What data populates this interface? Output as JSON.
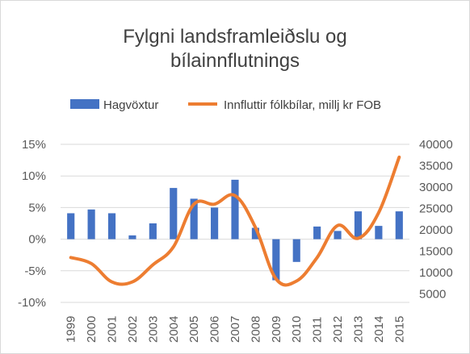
{
  "chart_data": {
    "type": "bar+line",
    "title_lines": [
      "Fylgni landsframleiðslu og",
      "bílainnflutnings"
    ],
    "categories": [
      "1999",
      "2000",
      "2001",
      "2002",
      "2003",
      "2004",
      "2005",
      "2006",
      "2007",
      "2008",
      "2009",
      "2010",
      "2011",
      "2012",
      "2013",
      "2014",
      "2015"
    ],
    "series": [
      {
        "name": "Hagvöxtur",
        "type": "bar",
        "axis": "left",
        "color": "#4472c4",
        "values": [
          4.1,
          4.7,
          4.1,
          0.6,
          2.5,
          8.1,
          6.4,
          5.0,
          9.4,
          1.8,
          -6.5,
          -3.6,
          2.0,
          1.3,
          4.4,
          2.1,
          4.4
        ]
      },
      {
        "name": "Innfluttir fólkbílar, millj kr FOB",
        "type": "line",
        "axis": "right",
        "color": "#ed7d31",
        "values": [
          13500,
          12100,
          7800,
          7800,
          11800,
          16000,
          26000,
          26000,
          28000,
          20500,
          8500,
          8000,
          13500,
          21000,
          18000,
          24000,
          37000
        ]
      }
    ],
    "y_left": {
      "ticks": [
        15,
        10,
        5,
        0,
        -5,
        -10
      ],
      "tick_labels": [
        "15%",
        "10%",
        "5%",
        "0%",
        "-5%",
        "-10%"
      ],
      "ylim": [
        -10,
        15
      ]
    },
    "y_right": {
      "ticks": [
        40000,
        35000,
        30000,
        25000,
        20000,
        15000,
        10000,
        5000
      ],
      "tick_labels": [
        "40000",
        "35000",
        "30000",
        "25000",
        "20000",
        "15000",
        "10000",
        "5000"
      ],
      "ylim": [
        3000,
        40000
      ]
    },
    "grid": true,
    "legend_position": "top"
  }
}
